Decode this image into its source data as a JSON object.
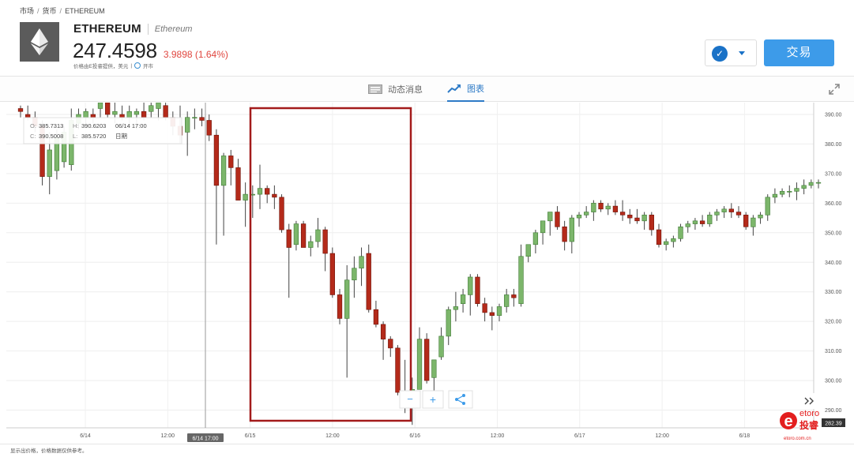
{
  "breadcrumb": {
    "items": [
      "市场",
      "货币",
      "ETHEREUM"
    ],
    "separator": "/"
  },
  "instrument": {
    "name": "ETHEREUM",
    "subtitle": "Ethereum",
    "price": "247.4598",
    "change": "3.9898 (1.64%)",
    "note": "价格由E投睿提供，美元",
    "market_status": "开市",
    "icon": "ethereum-logo-icon"
  },
  "actions": {
    "watch_icon": "check-icon",
    "caret_icon": "chevron-down-icon",
    "trade_label": "交易"
  },
  "tabs": [
    {
      "label": "动态消息",
      "icon": "news-icon",
      "active": false
    },
    {
      "label": "图表",
      "icon": "chart-trend-icon",
      "active": true
    }
  ],
  "colors": {
    "up": "#7cb66b",
    "down": "#b42a1a",
    "accent": "#3d9be9",
    "highlight": "#a31b1b"
  },
  "tooltip": {
    "o_label": "O:",
    "o_value": "385.7313",
    "h_label": "H:",
    "h_value": "390.6203",
    "date": "06/14 17:00",
    "c_label": "C:",
    "c_value": "390.5008",
    "l_label": "L:",
    "l_value": "385.5720",
    "period": "日期"
  },
  "chart_controls": {
    "zoom_out": "−",
    "zoom_in": "+",
    "share_icon": "share-icon",
    "scroll_icon": "double-chevron-right-icon"
  },
  "footer": {
    "note": "显示出价格，价格数据仅供参考。"
  },
  "brand": {
    "name": "etoro",
    "cn": "投睿",
    "url": "etoro.com.cn"
  },
  "chart_data": {
    "type": "candlestick",
    "x_labels": [
      "6/14",
      "12:00",
      "6/15",
      "12:00",
      "6/16",
      "12:00",
      "6/17",
      "12:00",
      "6/18"
    ],
    "y_ticks": [
      "390.00",
      "380.00",
      "370.00",
      "360.00",
      "350.00",
      "340.00",
      "330.00",
      "320.00",
      "310.00",
      "300.00",
      "290.00"
    ],
    "ylim": [
      284,
      394
    ],
    "crosshair_x_label": "6/14 17:00",
    "current_price_label": "282.39",
    "highlight_region": {
      "from": "6/15",
      "to": "6/16"
    },
    "candles": [
      [
        392,
        393,
        389,
        391
      ],
      [
        390,
        393,
        388,
        389
      ],
      [
        389,
        391,
        384,
        386
      ],
      [
        386,
        388,
        366,
        369
      ],
      [
        369,
        384,
        363,
        378
      ],
      [
        371,
        385,
        368,
        382
      ],
      [
        374,
        386,
        372,
        384
      ],
      [
        373,
        392,
        371,
        388
      ],
      [
        387,
        392,
        385,
        390
      ],
      [
        389,
        392,
        386,
        391
      ],
      [
        390,
        392,
        387,
        389
      ],
      [
        392,
        395,
        389,
        394
      ],
      [
        394,
        396,
        389,
        390
      ],
      [
        390,
        395,
        387,
        391
      ],
      [
        390,
        393,
        388,
        389
      ],
      [
        389,
        393,
        387,
        391
      ],
      [
        390,
        392,
        385,
        391
      ],
      [
        391,
        394,
        388,
        389
      ],
      [
        391,
        396,
        389,
        393
      ],
      [
        392,
        396,
        388,
        394
      ],
      [
        393,
        395,
        388,
        389
      ],
      [
        389,
        391,
        383,
        386
      ],
      [
        386,
        393,
        380,
        383
      ],
      [
        384,
        391,
        376,
        389
      ],
      [
        389,
        392,
        385,
        389
      ],
      [
        389,
        392,
        386,
        388
      ],
      [
        388,
        390,
        381,
        383
      ],
      [
        383,
        385,
        346,
        366
      ],
      [
        366,
        377,
        349,
        376
      ],
      [
        376,
        378,
        366,
        372
      ],
      [
        372,
        375,
        361,
        361
      ],
      [
        361,
        367,
        352,
        363
      ],
      [
        363,
        366,
        355,
        363
      ],
      [
        363,
        373,
        358,
        365
      ],
      [
        365,
        366,
        360,
        363
      ],
      [
        363,
        366,
        358,
        362
      ],
      [
        362,
        363,
        350,
        351
      ],
      [
        351,
        353,
        328,
        345
      ],
      [
        346,
        354,
        344,
        353
      ],
      [
        353,
        354,
        345,
        345
      ],
      [
        345,
        349,
        342,
        347
      ],
      [
        347,
        355,
        345,
        351
      ],
      [
        351,
        352,
        337,
        343
      ],
      [
        343,
        345,
        328,
        329
      ],
      [
        329,
        331,
        319,
        321
      ],
      [
        321,
        339,
        301,
        334
      ],
      [
        334,
        342,
        328,
        338
      ],
      [
        338,
        345,
        332,
        342
      ],
      [
        343,
        346,
        323,
        324
      ],
      [
        324,
        327,
        318,
        319
      ],
      [
        319,
        320,
        307,
        314
      ],
      [
        314,
        315,
        308,
        311
      ],
      [
        311,
        312,
        295,
        296
      ],
      [
        296,
        307,
        289,
        294
      ],
      [
        294,
        301,
        285,
        297
      ],
      [
        297,
        318,
        297,
        314
      ],
      [
        314,
        316,
        299,
        300
      ],
      [
        301,
        307,
        296,
        307
      ],
      [
        308,
        318,
        307,
        315
      ],
      [
        315,
        325,
        312,
        324
      ],
      [
        324,
        330,
        320,
        325
      ],
      [
        326,
        331,
        323,
        329
      ],
      [
        329,
        336,
        322,
        335
      ],
      [
        335,
        336,
        325,
        326
      ],
      [
        326,
        328,
        320,
        323
      ],
      [
        323,
        325,
        317,
        322
      ],
      [
        322,
        326,
        320,
        325
      ],
      [
        325,
        331,
        323,
        329
      ],
      [
        329,
        331,
        325,
        328
      ],
      [
        326,
        346,
        325,
        342
      ],
      [
        342,
        346,
        340,
        346
      ],
      [
        346,
        351,
        343,
        350
      ],
      [
        350,
        353,
        346,
        354
      ],
      [
        354,
        357,
        349,
        357
      ],
      [
        357,
        359,
        351,
        352
      ],
      [
        352,
        354,
        344,
        347
      ],
      [
        347,
        356,
        343,
        355
      ],
      [
        355,
        357,
        352,
        356
      ],
      [
        356,
        359,
        355,
        357
      ],
      [
        357,
        361,
        354,
        360
      ],
      [
        360,
        361,
        357,
        358
      ],
      [
        358,
        360,
        356,
        359
      ],
      [
        359,
        361,
        356,
        357
      ],
      [
        357,
        361,
        354,
        356
      ],
      [
        356,
        358,
        353,
        355
      ],
      [
        355,
        358,
        353,
        354
      ],
      [
        354,
        357,
        351,
        356
      ],
      [
        356,
        357,
        349,
        351
      ],
      [
        351,
        353,
        345,
        346
      ],
      [
        346,
        348,
        344,
        347
      ],
      [
        347,
        349,
        345,
        348
      ],
      [
        348,
        353,
        347,
        352
      ],
      [
        352,
        354,
        350,
        353
      ],
      [
        353,
        355,
        351,
        354
      ],
      [
        354,
        356,
        352,
        353
      ],
      [
        353,
        357,
        352,
        356
      ],
      [
        356,
        358,
        354,
        357
      ],
      [
        357,
        359,
        355,
        358
      ],
      [
        358,
        360,
        355,
        357
      ],
      [
        357,
        359,
        355,
        356
      ],
      [
        356,
        357,
        351,
        352
      ],
      [
        352,
        356,
        349,
        355
      ],
      [
        355,
        357,
        353,
        356
      ],
      [
        356,
        363,
        354,
        362
      ],
      [
        362,
        365,
        360,
        363
      ],
      [
        363,
        365,
        362,
        364
      ],
      [
        364,
        366,
        362,
        364
      ],
      [
        364,
        367,
        361,
        365
      ],
      [
        365,
        368,
        363,
        366
      ],
      [
        366,
        368,
        365,
        367
      ],
      [
        367,
        368,
        365,
        367
      ]
    ]
  }
}
